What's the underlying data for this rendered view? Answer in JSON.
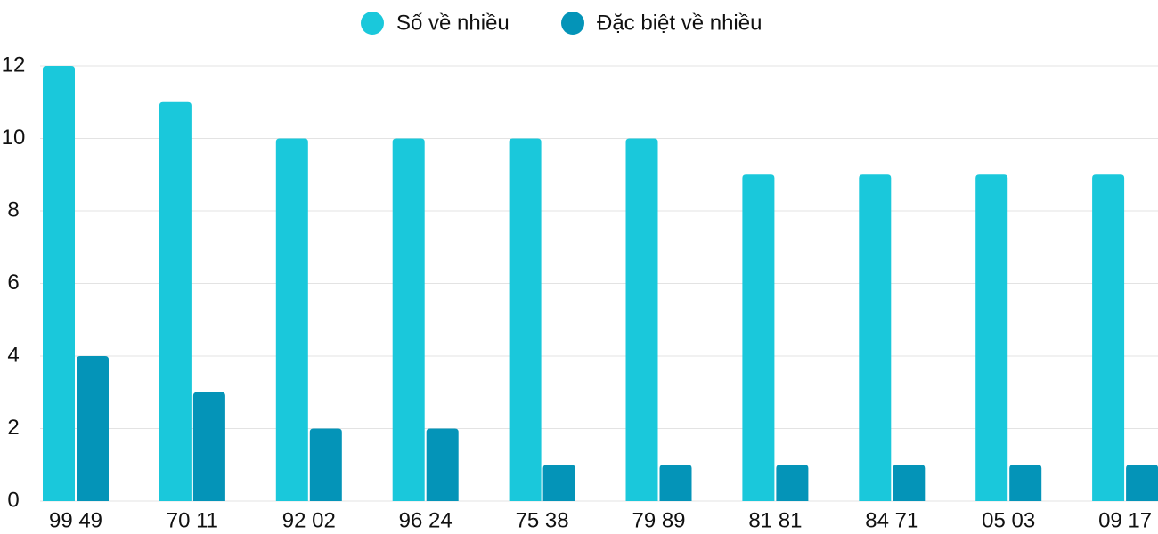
{
  "chart_data": {
    "type": "bar",
    "categories": [
      "99 49",
      "70 11",
      "92 02",
      "96 24",
      "75 38",
      "79 89",
      "81 81",
      "84 71",
      "05 03",
      "09 17"
    ],
    "series": [
      {
        "name": "Số về nhiều",
        "color": "#1ac8db",
        "values": [
          12,
          11,
          10,
          10,
          10,
          10,
          9,
          9,
          9,
          9
        ]
      },
      {
        "name": "Đặc biệt về nhiều",
        "color": "#0494b8",
        "values": [
          4,
          3,
          2,
          2,
          1,
          1,
          1,
          1,
          1,
          1
        ]
      }
    ],
    "ylim": [
      0,
      12
    ],
    "yticks": [
      0,
      2,
      4,
      6,
      8,
      10,
      12
    ],
    "grid": true,
    "legend": "top"
  }
}
